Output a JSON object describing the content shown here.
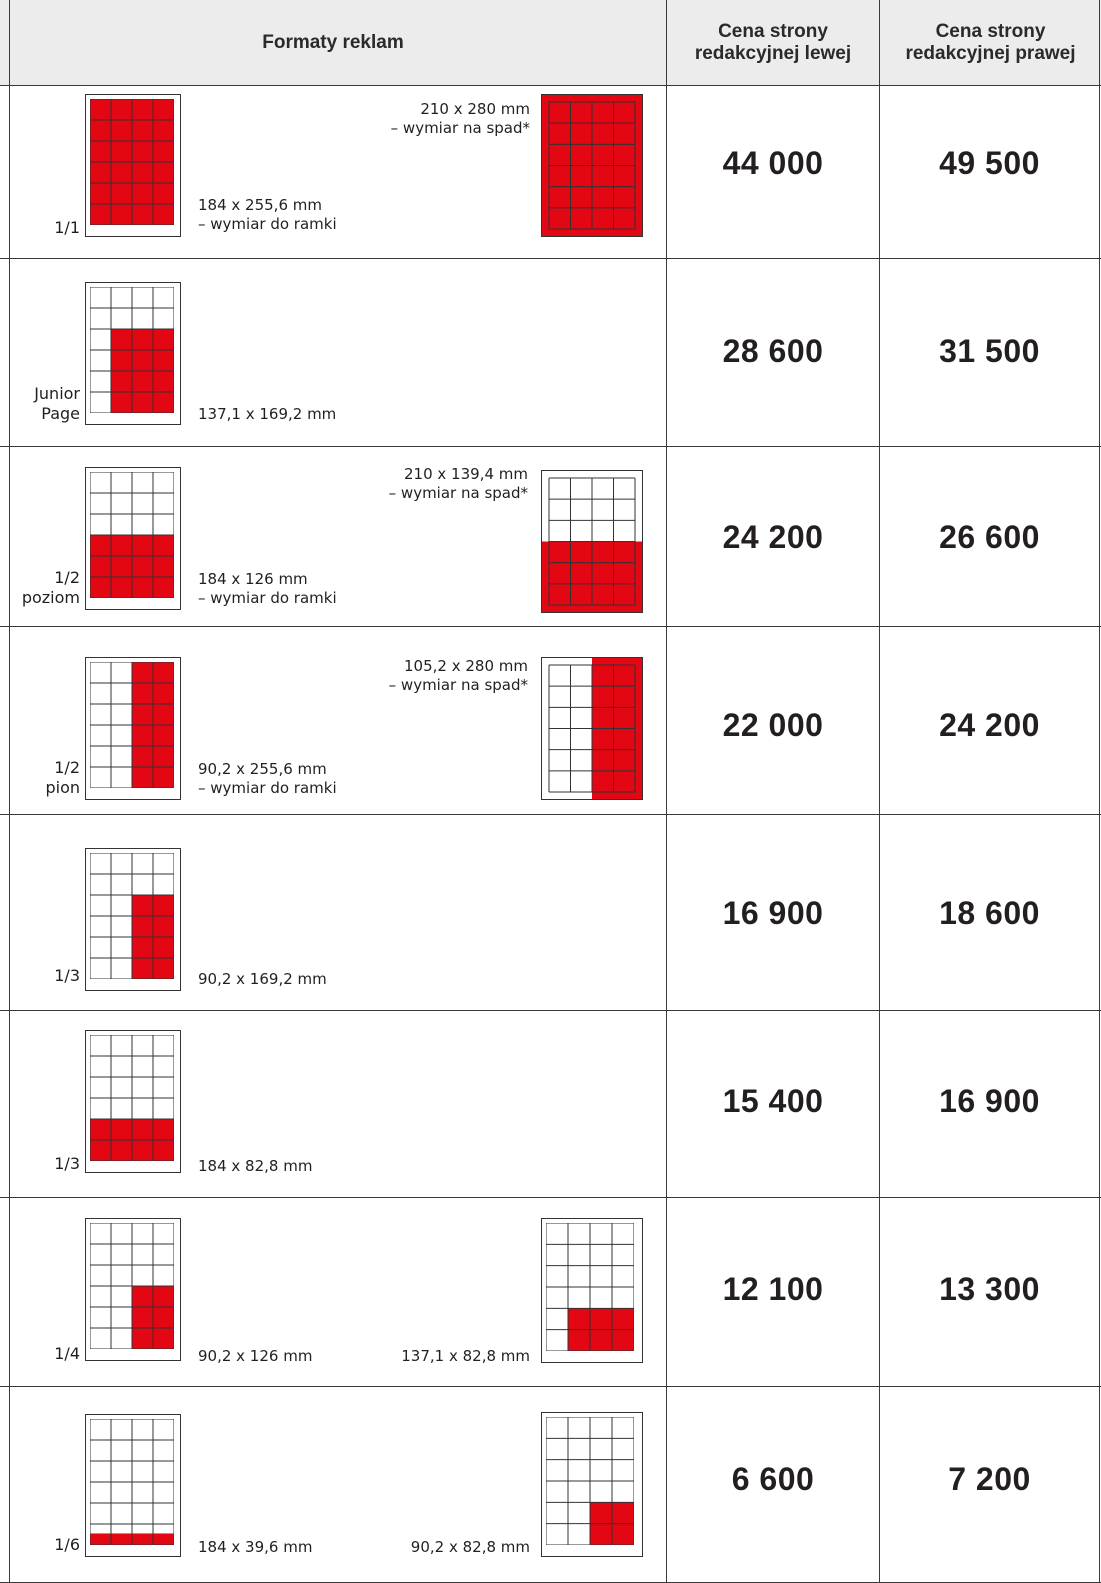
{
  "header": {
    "formats": "Formaty reklam",
    "left": "Cena strony\nredakcyjnej lewej",
    "right": "Cena strony\nredakcyjnej prawej"
  },
  "colors": {
    "ad": "#e30613",
    "header_bg": "#ececec",
    "grid": "#3a3a3a"
  },
  "rows": [
    {
      "label": "1/1",
      "dim": "184 x 255,6 mm\n– wymiar do ramki",
      "dim2": "210 x 280 mm\n– wymiar na spad*",
      "price_left": "44 000",
      "price_right": "49 500"
    },
    {
      "label": "Junior\nPage",
      "dim": "137,1 x 169,2 mm",
      "price_left": "28 600",
      "price_right": "31 500"
    },
    {
      "label": "1/2\npoziom",
      "dim": "184 x 126 mm\n– wymiar do ramki",
      "dim2": "210 x 139,4 mm\n– wymiar na spad*",
      "price_left": "24 200",
      "price_right": "26 600"
    },
    {
      "label": "1/2\npion",
      "dim": "90,2 x 255,6 mm\n– wymiar do ramki",
      "dim2": "105,2 x 280 mm\n– wymiar na spad*",
      "price_left": "22 000",
      "price_right": "24 200"
    },
    {
      "label": "1/3",
      "dim": "90,2 x 169,2 mm",
      "price_left": "16 900",
      "price_right": "18 600"
    },
    {
      "label": "1/3",
      "dim": "184 x 82,8 mm",
      "price_left": "15 400",
      "price_right": "16 900"
    },
    {
      "label": "1/4",
      "dim": "90,2 x 126 mm",
      "dim2": "137,1 x 82,8 mm",
      "price_left": "12 100",
      "price_right": "13 300"
    },
    {
      "label": "1/6",
      "dim": "184 x 39,6 mm",
      "dim2": "90,2 x 82,8 mm",
      "price_left": "6 600",
      "price_right": "7 200"
    }
  ]
}
